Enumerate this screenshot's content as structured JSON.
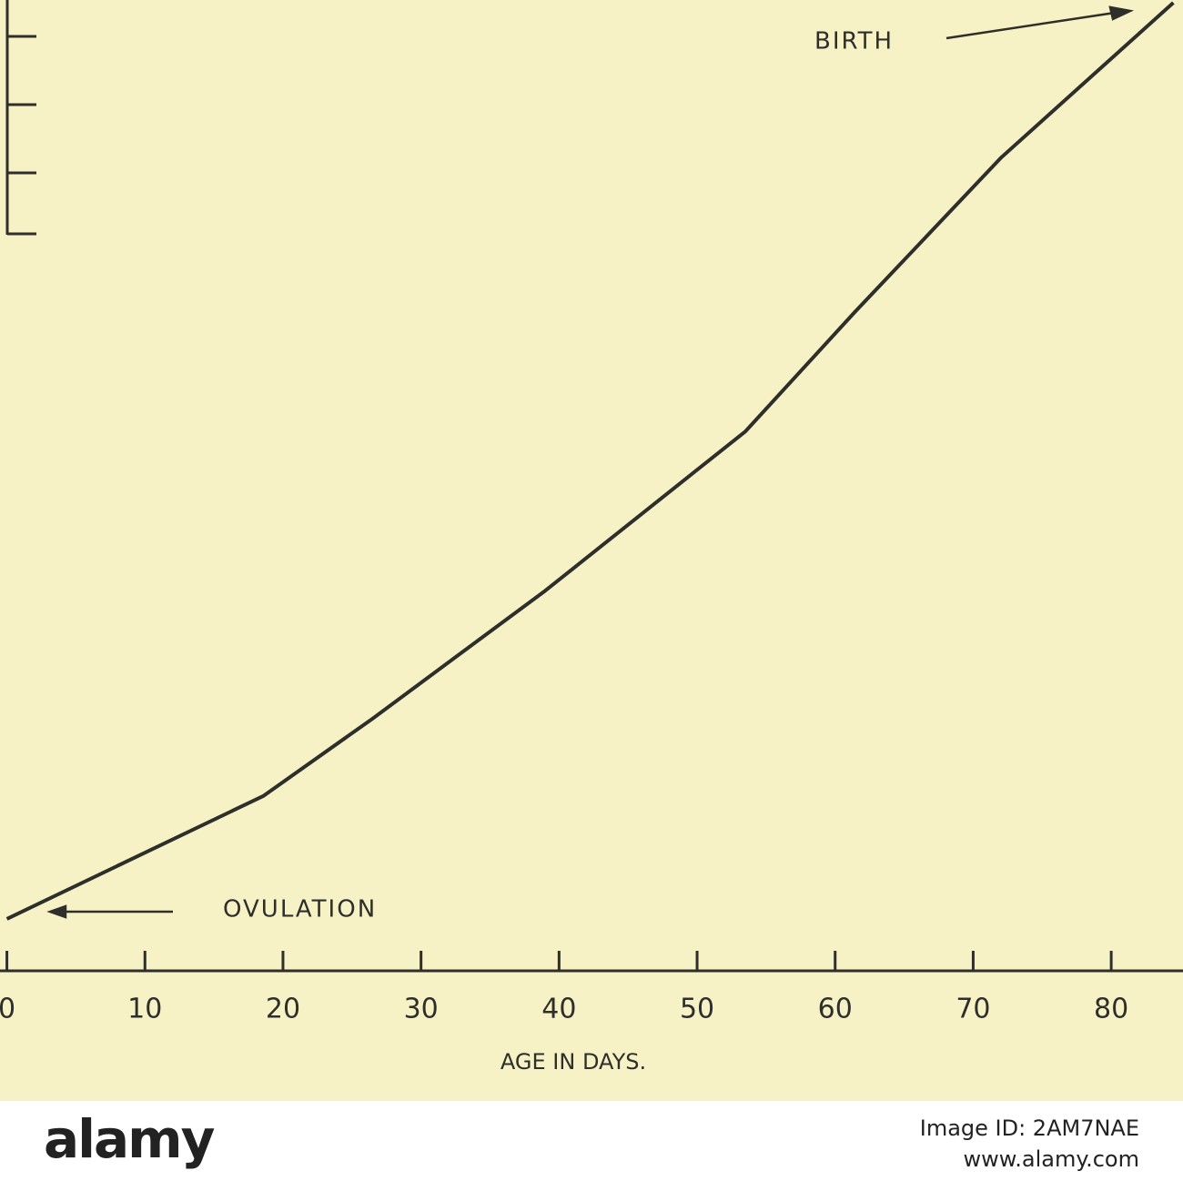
{
  "chart_data": {
    "type": "line",
    "x_label": "AGE IN DAYS.",
    "annotations": [
      "BIRTH",
      "OVULATION"
    ],
    "x": [
      0,
      18.6,
      26.5,
      39,
      53.5,
      61.4,
      72,
      84.5
    ],
    "series": [
      {
        "color": "#2e2e2a",
        "values": [
          0.76,
          2.56,
          3.69,
          5.56,
          7.89,
          9.63,
          11.89,
          14.16
        ]
      }
    ],
    "xlim": [
      -0.5,
      85.2
    ],
    "ylim": [
      0,
      14.2
    ],
    "xticks": [
      0,
      10,
      20,
      30,
      40,
      50,
      60,
      70,
      80
    ]
  },
  "watermark": {
    "logo": "alamy",
    "image_id": "Image ID: 2AM7NAE",
    "url": "www.alamy.com"
  }
}
